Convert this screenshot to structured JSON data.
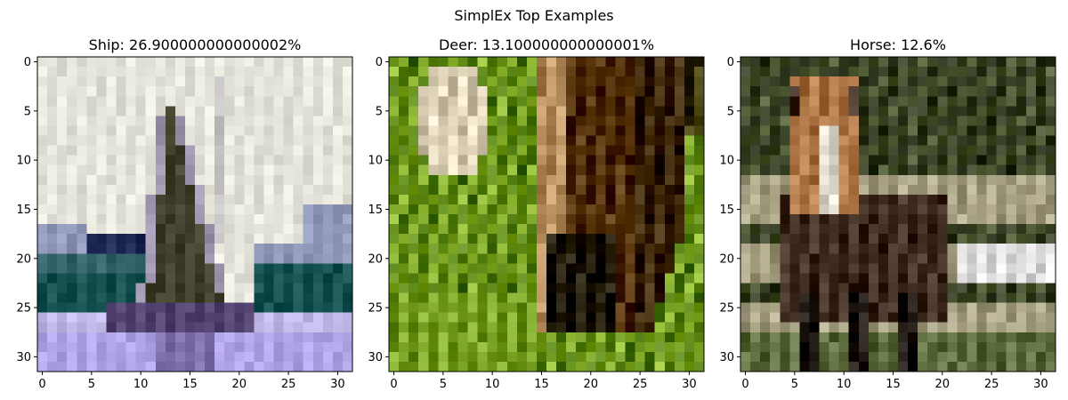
{
  "figure": {
    "suptitle": "SimplEx Top Examples"
  },
  "chart_data": [
    {
      "type": "heatmap",
      "title": "Ship: 26.900000000000002%",
      "xlabel": "",
      "ylabel": "",
      "x_ticks": [
        "0",
        "5",
        "10",
        "15",
        "20",
        "25",
        "30"
      ],
      "y_ticks": [
        "0",
        "5",
        "10",
        "15",
        "20",
        "25",
        "30"
      ],
      "xlim": [
        -0.5,
        31.5
      ],
      "ylim": [
        31.5,
        -0.5
      ],
      "grid": false,
      "image_resolution": [
        32,
        32
      ],
      "content": "sailboat",
      "palette": {
        "sky": "#eeeee4",
        "water": "#b4a8ee",
        "water_light": "#d8d4f4",
        "sail": "#4b4a36",
        "sail_edge": "#a8a0b8",
        "hull": "#5a4b78",
        "hills": "#1e5a5a",
        "hills_dark": "#26305a",
        "hills_light": "#9aa2c4"
      }
    },
    {
      "type": "heatmap",
      "title": "Deer: 13.100000000000001%",
      "xlabel": "",
      "ylabel": "",
      "x_ticks": [
        "0",
        "5",
        "10",
        "15",
        "20",
        "25",
        "30"
      ],
      "y_ticks": [
        "0",
        "5",
        "10",
        "15",
        "20",
        "25",
        "30"
      ],
      "xlim": [
        -0.5,
        31.5
      ],
      "ylim": [
        31.5,
        -0.5
      ],
      "grid": false,
      "image_resolution": [
        32,
        32
      ],
      "content": "deer close-up in grass",
      "palette": {
        "grass": "#5e8a1e",
        "grass_light": "#9ac23c",
        "grass_dark": "#2e4a0e",
        "fur": "#6a4418",
        "fur_light": "#c8a070",
        "cream": "#f2e6cc",
        "dark": "#2a2410"
      }
    },
    {
      "type": "heatmap",
      "title": "Horse: 12.6%",
      "xlabel": "",
      "ylabel": "",
      "x_ticks": [
        "0",
        "5",
        "10",
        "15",
        "20",
        "25",
        "30"
      ],
      "y_ticks": [
        "0",
        "5",
        "10",
        "15",
        "20",
        "25",
        "30"
      ],
      "xlim": [
        -0.5,
        31.5
      ],
      "ylim": [
        31.5,
        -0.5
      ],
      "grid": false,
      "image_resolution": [
        32,
        32
      ],
      "content": "brown horse in field",
      "palette": {
        "bg_green": "#5c6840",
        "bg_dark": "#3e4630",
        "fence": "#cfc4aa",
        "fence_white": "#f2f0f0",
        "body": "#4e3a2e",
        "head": "#c08858",
        "blaze": "#eeeadc",
        "ground": "#6a7a4a",
        "legs": "#2e2620"
      }
    }
  ]
}
